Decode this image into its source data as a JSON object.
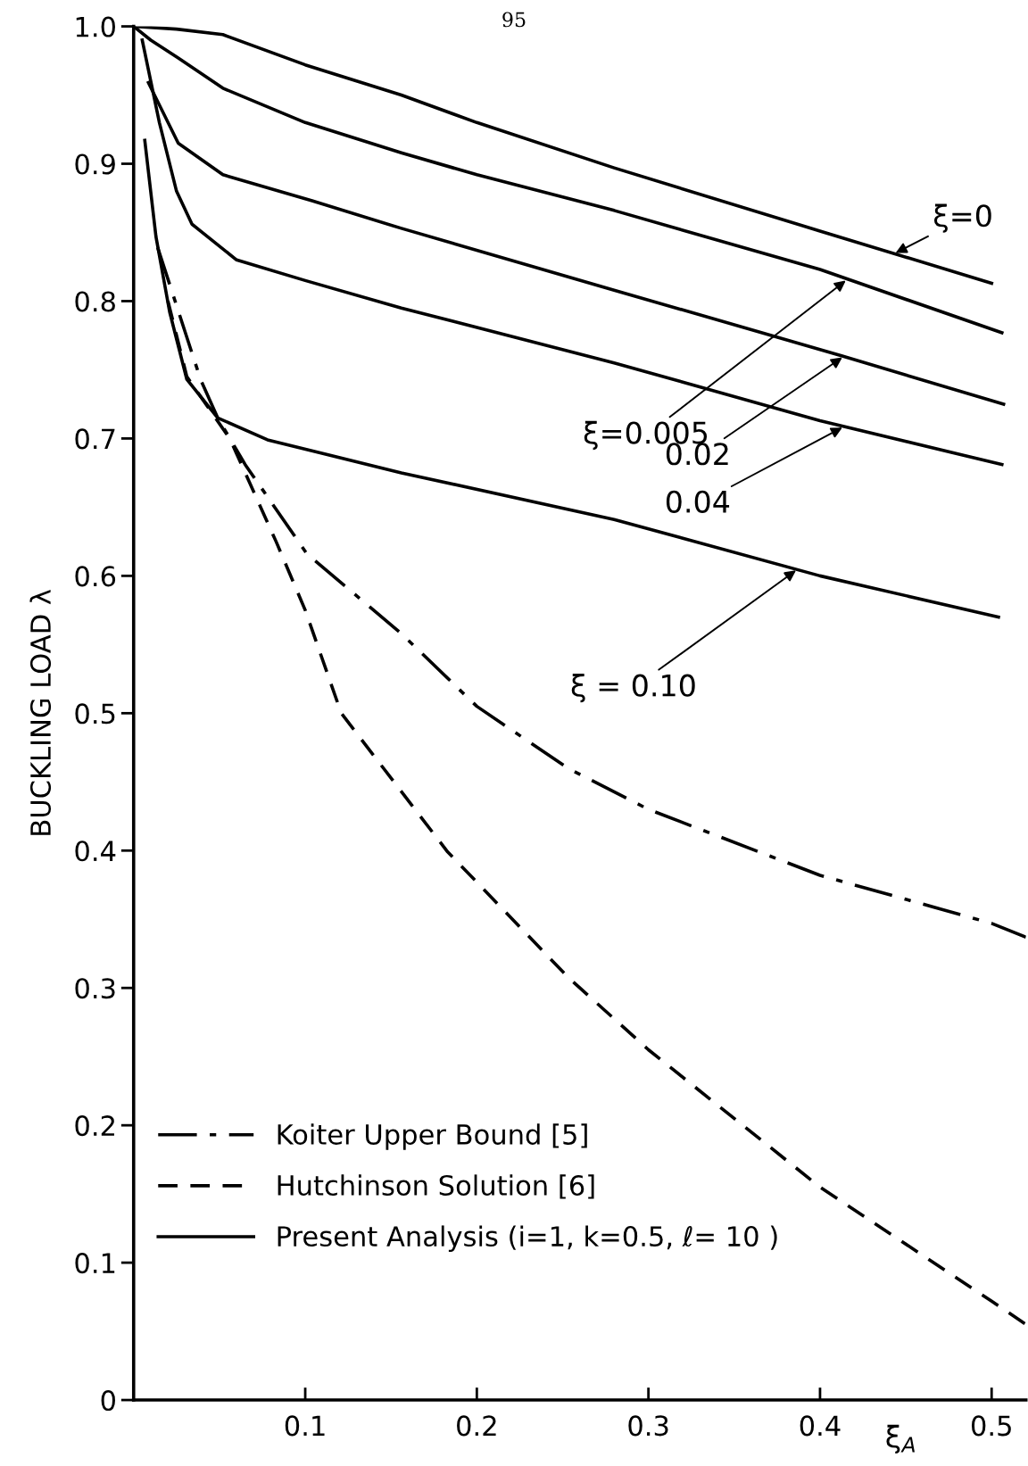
{
  "chart_data": {
    "type": "line",
    "ylabel": "BUCKLING LOAD λ",
    "xlabel": "ξ̄$_{A}$",
    "xlim": [
      0,
      0.52
    ],
    "ylim": [
      0,
      1.0
    ],
    "xticks": [
      0.1,
      0.2,
      0.3,
      0.4,
      0.5
    ],
    "yticks": [
      0,
      0.1,
      0.2,
      0.3,
      0.4,
      0.5,
      0.6,
      0.7,
      0.8,
      0.9,
      {
        "value": 1.0,
        "label": "1.0"
      }
    ],
    "grid": false,
    "legend": "bottom left",
    "marker": "none",
    "series": [
      {
        "name": "Koiter Upper Bound [5]",
        "color": "#000000",
        "line_style": "dashdot",
        "x": [
          0.014,
          0.039,
          0.049,
          0.065,
          0.101,
          0.156,
          0.2,
          0.253,
          0.3,
          0.4,
          0.5,
          0.52
        ],
        "values": [
          0.839,
          0.743,
          0.715,
          0.681,
          0.616,
          0.558,
          0.505,
          0.46,
          0.43,
          0.382,
          0.347,
          0.337
        ]
      },
      {
        "name": "Hutchinson Solution [6]",
        "color": "#000000",
        "line_style": "dashed",
        "x": [
          0.02,
          0.031,
          0.056,
          0.083,
          0.1,
          0.121,
          0.183,
          0.2,
          0.253,
          0.3,
          0.4,
          0.5,
          0.52
        ],
        "values": [
          0.8,
          0.745,
          0.7,
          0.625,
          0.575,
          0.5,
          0.399,
          0.377,
          0.308,
          0.255,
          0.155,
          0.072,
          0.055
        ]
      },
      {
        "name": "Present Analysis (i=1, k=0.5, ℓ= 10 )",
        "color": "#000000",
        "line_style": "solid",
        "x": [
          0,
          0.025,
          0.052,
          0.1,
          0.156,
          0.2,
          0.28,
          0.4,
          0.5
        ],
        "values": [
          1.0,
          0.998,
          0.994,
          0.972,
          0.95,
          0.93,
          0.897,
          0.851,
          0.813
        ]
      },
      {
        "color": "#000000",
        "line_style": "solid",
        "x": [
          0,
          0.01,
          0.026,
          0.052,
          0.1,
          0.156,
          0.2,
          0.28,
          0.4,
          0.506
        ],
        "values": [
          1.0,
          0.99,
          0.977,
          0.955,
          0.93,
          0.908,
          0.892,
          0.866,
          0.823,
          0.777
        ]
      },
      {
        "color": "#000000",
        "line_style": "solid",
        "x": [
          0.0086,
          0.026,
          0.052,
          0.104,
          0.156,
          0.28,
          0.413,
          0.507
        ],
        "values": [
          0.959,
          0.915,
          0.892,
          0.873,
          0.853,
          0.808,
          0.76,
          0.725
        ]
      },
      {
        "color": "#000000",
        "line_style": "solid",
        "x": [
          0.005,
          0.015,
          0.025,
          0.034,
          0.06,
          0.1,
          0.156,
          0.28,
          0.4,
          0.506
        ],
        "values": [
          0.99,
          0.93,
          0.88,
          0.856,
          0.83,
          0.815,
          0.795,
          0.755,
          0.713,
          0.681
        ]
      },
      {
        "color": "#000000",
        "line_style": "solid",
        "x": [
          0.0065,
          0.013,
          0.021,
          0.031,
          0.049,
          0.078,
          0.156,
          0.28,
          0.4,
          0.504
        ],
        "values": [
          0.917,
          0.847,
          0.792,
          0.743,
          0.715,
          0.699,
          0.675,
          0.641,
          0.6,
          0.57
        ]
      }
    ],
    "annotations": [
      "95",
      {
        "text": "ξ̄=0",
        "x": 0.444,
        "y": 0.835
      },
      {
        "text": "ξ̄=0.005",
        "x": 0.415,
        "y": 0.815
      },
      {
        "text": "0.02",
        "x": 0.413,
        "y": 0.759
      },
      {
        "text": "0.04",
        "x": 0.413,
        "y": 0.708
      },
      {
        "text": "ξ̄ = 0.10",
        "x": 0.386,
        "y": 0.604
      }
    ]
  }
}
